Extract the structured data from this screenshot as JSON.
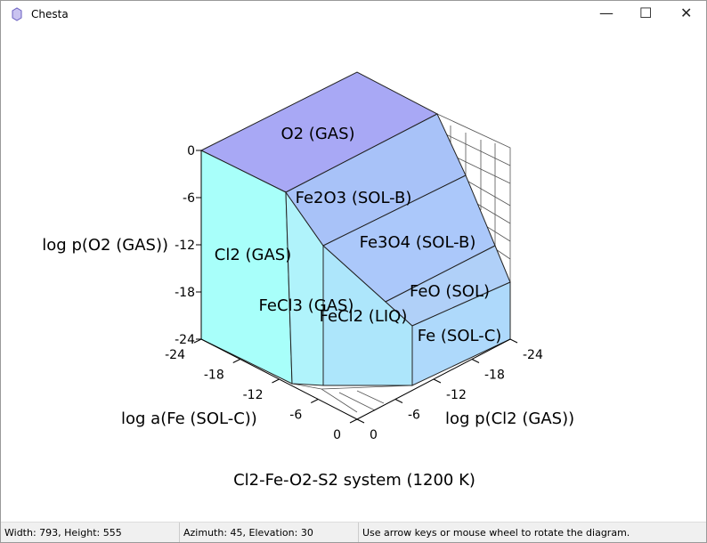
{
  "window": {
    "title": "Chesta"
  },
  "diagram": {
    "title": "Cl2-Fe-O2-S2 system (1200 K)",
    "z_axis": {
      "label": "log p(O2 (GAS))",
      "ticks": [
        0,
        -6,
        -12,
        -18,
        -24
      ]
    },
    "x_axis": {
      "label": "log a(Fe (SOL-C))",
      "ticks": [
        -24,
        -18,
        -12,
        -6,
        0
      ]
    },
    "y_axis": {
      "label": "log p(Cl2 (GAS))",
      "ticks": [
        0,
        -6,
        -12,
        -18,
        -24
      ]
    },
    "regions": [
      "O2 (GAS)",
      "Fe2O3 (SOL-B)",
      "Fe3O4 (SOL-B)",
      "FeO (SOL)",
      "Fe (SOL-C)",
      "Cl2 (GAS)",
      "FeCl3 (GAS)",
      "FeCl2 (LIQ)"
    ]
  },
  "status_bar": [
    "Width: 793, Height: 555",
    "Azimuth: 45, Elevation: 30",
    "Use arrow keys or mouse wheel to rotate the diagram."
  ]
}
